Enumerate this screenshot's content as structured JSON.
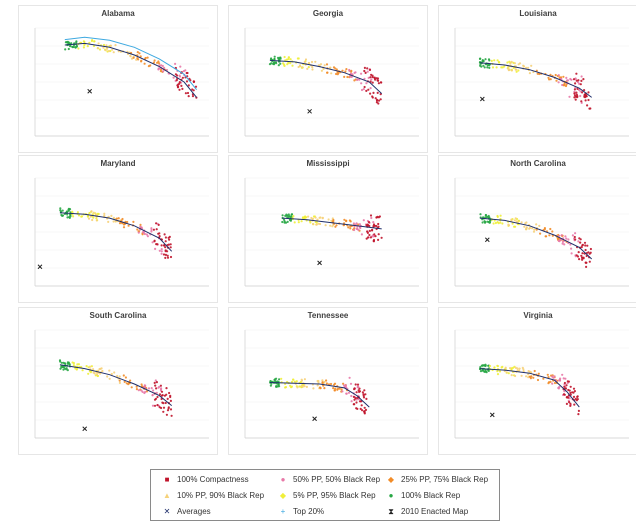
{
  "chart_data": [
    {
      "type": "scatter",
      "title": "Alabama",
      "series": [
        {
          "name": "100% Black Rep",
          "type": "scatter",
          "x": [
            0.1,
            0.12,
            0.14,
            0.16,
            0.13,
            0.11
          ],
          "y": [
            1.18,
            1.2,
            1.17,
            1.22,
            1.19,
            1.16
          ]
        },
        {
          "name": "Averages",
          "type": "line",
          "x": [
            0.12,
            0.2,
            0.3,
            0.4,
            0.5,
            0.6,
            0.65
          ],
          "y": [
            1.18,
            1.2,
            1.15,
            1.05,
            0.9,
            0.7,
            0.5
          ]
        },
        {
          "name": "Top 20%",
          "type": "line",
          "x": [
            0.12,
            0.2,
            0.3,
            0.4,
            0.5,
            0.6,
            0.65
          ],
          "y": [
            1.25,
            1.28,
            1.24,
            1.15,
            1.0,
            0.8,
            0.6
          ]
        },
        {
          "name": "2010 Enacted Map",
          "type": "marker",
          "x": [
            0.22
          ],
          "y": [
            0.58
          ]
        }
      ]
    },
    {
      "type": "scatter",
      "title": "Georgia",
      "series": [
        {
          "name": "Averages",
          "type": "line",
          "x": [
            0.1,
            0.2,
            0.3,
            0.4,
            0.5,
            0.55
          ],
          "y": [
            0.98,
            0.96,
            0.9,
            0.82,
            0.7,
            0.55
          ]
        },
        {
          "name": "2010 Enacted Map",
          "type": "marker",
          "x": [
            0.26
          ],
          "y": [
            0.32
          ]
        }
      ]
    },
    {
      "type": "scatter",
      "title": "Louisiana",
      "series": [
        {
          "name": "Averages",
          "type": "line",
          "x": [
            0.1,
            0.2,
            0.3,
            0.4,
            0.5,
            0.55
          ],
          "y": [
            0.95,
            0.92,
            0.86,
            0.76,
            0.62,
            0.5
          ]
        },
        {
          "name": "2010 Enacted Map",
          "type": "marker",
          "x": [
            0.11
          ],
          "y": [
            0.48
          ]
        }
      ]
    },
    {
      "type": "scatter",
      "title": "Maryland",
      "series": [
        {
          "name": "Averages",
          "type": "line",
          "x": [
            0.1,
            0.2,
            0.3,
            0.4,
            0.5,
            0.55
          ],
          "y": [
            0.95,
            0.93,
            0.88,
            0.78,
            0.62,
            0.45
          ]
        },
        {
          "name": "2010 Enacted Map",
          "type": "marker",
          "x": [
            0.02
          ],
          "y": [
            0.25
          ]
        }
      ]
    },
    {
      "type": "scatter",
      "title": "Mississippi",
      "series": [
        {
          "name": "Averages",
          "type": "line",
          "x": [
            0.15,
            0.25,
            0.35,
            0.45,
            0.55
          ],
          "y": [
            0.88,
            0.86,
            0.82,
            0.78,
            0.74
          ]
        },
        {
          "name": "2010 Enacted Map",
          "type": "marker",
          "x": [
            0.3
          ],
          "y": [
            0.3
          ]
        }
      ]
    },
    {
      "type": "scatter",
      "title": "North Carolina",
      "series": [
        {
          "name": "Averages",
          "type": "line",
          "x": [
            0.1,
            0.2,
            0.3,
            0.4,
            0.5,
            0.55
          ],
          "y": [
            0.88,
            0.85,
            0.78,
            0.66,
            0.5,
            0.35
          ]
        },
        {
          "name": "2010 Enacted Map",
          "type": "marker",
          "x": [
            0.13
          ],
          "y": [
            0.6
          ]
        }
      ]
    },
    {
      "type": "scatter",
      "title": "South Carolina",
      "series": [
        {
          "name": "Averages",
          "type": "line",
          "x": [
            0.1,
            0.2,
            0.3,
            0.4,
            0.5,
            0.55
          ],
          "y": [
            0.95,
            0.9,
            0.82,
            0.7,
            0.55,
            0.42
          ]
        },
        {
          "name": "2010 Enacted Map",
          "type": "marker",
          "x": [
            0.2
          ],
          "y": [
            0.12
          ]
        }
      ]
    },
    {
      "type": "scatter",
      "title": "Tennessee",
      "series": [
        {
          "name": "Averages",
          "type": "line",
          "x": [
            0.1,
            0.2,
            0.3,
            0.4,
            0.45,
            0.5
          ],
          "y": [
            0.72,
            0.71,
            0.7,
            0.65,
            0.55,
            0.4
          ]
        },
        {
          "name": "2010 Enacted Map",
          "type": "marker",
          "x": [
            0.28
          ],
          "y": [
            0.25
          ]
        }
      ]
    },
    {
      "type": "scatter",
      "title": "Virginia",
      "series": [
        {
          "name": "Averages",
          "type": "line",
          "x": [
            0.1,
            0.2,
            0.3,
            0.4,
            0.45,
            0.5
          ],
          "y": [
            0.9,
            0.88,
            0.84,
            0.75,
            0.6,
            0.4
          ]
        },
        {
          "name": "2010 Enacted Map",
          "type": "marker",
          "x": [
            0.15
          ],
          "y": [
            0.3
          ]
        }
      ]
    }
  ],
  "colors": {
    "compact100": "#c0142b",
    "pp50": "#e879a8",
    "pp25": "#f28c28",
    "pp10": "#f6d27a",
    "pp5": "#f0ef3a",
    "black100": "#28a745",
    "avg": "#1f2f6b",
    "top20": "#3ea9e0",
    "enacted": "#222222"
  },
  "legend": {
    "items": [
      {
        "label": "100% Compactness",
        "symbol": "■",
        "color_key": "compact100"
      },
      {
        "label": "50% PP, 50% Black Rep",
        "symbol": "●",
        "color_key": "pp50"
      },
      {
        "label": "25% PP, 75% Black Rep",
        "symbol": "◆",
        "color_key": "pp25"
      },
      {
        "label": "10% PP, 90% Black Rep",
        "symbol": "▲",
        "color_key": "pp10"
      },
      {
        "label": "5% PP, 95% Black Rep",
        "symbol": "◆",
        "color_key": "pp5"
      },
      {
        "label": "100% Black Rep",
        "symbol": "●",
        "color_key": "black100"
      },
      {
        "label": "Averages",
        "symbol": "✕",
        "color_key": "avg"
      },
      {
        "label": "Top 20%",
        "symbol": "+",
        "color_key": "top20"
      },
      {
        "label": "2010 Enacted Map",
        "symbol": "⧗",
        "color_key": "enacted"
      }
    ]
  }
}
